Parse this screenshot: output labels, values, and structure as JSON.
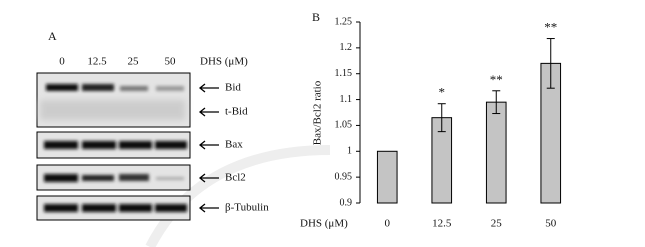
{
  "blot": {
    "label": "A",
    "lanes": [
      "0",
      "12.5",
      "25",
      "50"
    ],
    "dose_label": "DHS (μM)",
    "bands": [
      "Bid",
      "t-Bid",
      "Bax",
      "Bcl2",
      "β-Tubulin"
    ]
  },
  "chart_data": {
    "type": "bar",
    "label": "B",
    "ylabel": "Bax/Bcl2 ratio",
    "xlabel": "DHS (μM)",
    "categories": [
      "0",
      "12.5",
      "25",
      "50"
    ],
    "values": [
      1,
      1.065,
      1.095,
      1.17
    ],
    "errors": [
      0,
      0.027,
      0.022,
      0.048
    ],
    "annotations": [
      null,
      "*",
      "**",
      "**"
    ],
    "color": "#c4c4c4",
    "ylim": [
      0.9,
      1.25
    ],
    "yticks": [
      0.9,
      0.95,
      1,
      1.05,
      1.1,
      1.15,
      1.2,
      1.25
    ],
    "grid": false
  }
}
